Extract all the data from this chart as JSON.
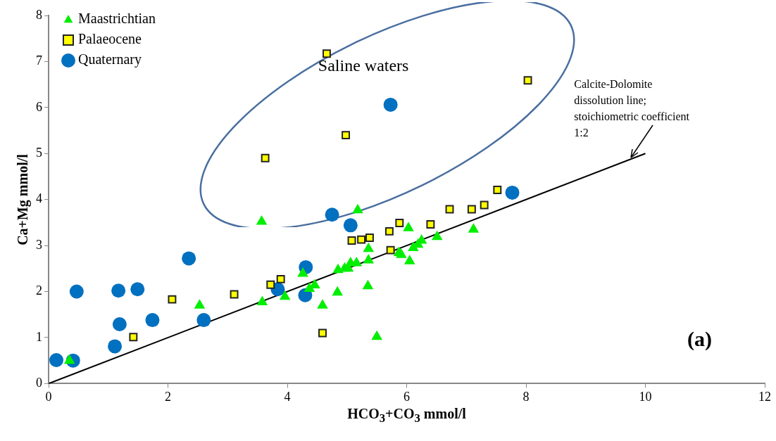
{
  "chart_data": {
    "type": "scatter",
    "xlabel": "HCO$_{3}$+CO$_{3}$ mmol/l",
    "ylabel": "Ca+Mg mmol/l",
    "xlim": [
      0,
      12
    ],
    "xticks": [
      0,
      2,
      4,
      6,
      8,
      10,
      12
    ],
    "ylim": [
      0,
      8
    ],
    "yticks": [
      0,
      1,
      2,
      3,
      4,
      5,
      6,
      7,
      8
    ],
    "grid": false,
    "legend": "top left",
    "series": [
      {
        "name": "Maastrichtian",
        "marker": "triangle",
        "color": "#00ee00",
        "x": [
          0.35,
          2.53,
          3.57,
          3.58,
          3.96,
          4.26,
          4.37,
          4.46,
          4.59,
          4.84,
          4.85,
          4.96,
          5.02,
          5.06,
          5.16,
          5.18,
          5.35,
          5.36,
          5.36,
          5.5,
          5.87,
          5.91,
          6.03,
          6.05,
          6.11,
          6.19,
          6.25,
          6.51,
          7.12
        ],
        "values": [
          0.5,
          1.7,
          3.52,
          1.77,
          1.89,
          2.39,
          2.06,
          2.14,
          1.7,
          1.98,
          2.47,
          2.5,
          2.5,
          2.62,
          2.62,
          3.77,
          2.12,
          2.93,
          2.68,
          1.02,
          2.84,
          2.8,
          3.38,
          2.66,
          2.95,
          3.02,
          3.11,
          3.19,
          3.35
        ]
      },
      {
        "name": "Palaeocene",
        "marker": "square",
        "color": "#ffff00",
        "x": [
          1.42,
          2.07,
          3.11,
          3.63,
          3.7,
          3.72,
          3.89,
          4.59,
          4.66,
          4.98,
          5.08,
          5.24,
          5.38,
          5.71,
          5.73,
          5.88,
          6.4,
          6.72,
          7.09,
          7.3,
          7.52,
          8.03
        ],
        "values": [
          1.01,
          1.83,
          1.94,
          4.9,
          null,
          2.15,
          2.27,
          1.1,
          7.17,
          5.4,
          3.11,
          3.13,
          3.17,
          3.31,
          2.9,
          3.49,
          3.46,
          3.79,
          3.79,
          3.88,
          4.21,
          6.59
        ]
      },
      {
        "name": "Quaternary",
        "marker": "circle",
        "color": "#0070c0",
        "x": [
          0.13,
          0.41,
          0.47,
          1.11,
          1.17,
          1.19,
          1.49,
          1.74,
          2.35,
          2.6,
          3.84,
          4.3,
          4.31,
          4.75,
          5.06,
          5.73,
          7.77
        ],
        "values": [
          0.51,
          0.5,
          2.0,
          0.81,
          2.02,
          1.29,
          2.05,
          1.38,
          2.72,
          1.38,
          2.05,
          1.92,
          2.53,
          3.67,
          3.44,
          6.06,
          4.15
        ]
      },
      {
        "type": "line",
        "marker": "none",
        "color": "#000000",
        "x": [
          0,
          10
        ],
        "values": [
          0,
          5
        ]
      }
    ],
    "annotations": [
      "Saline waters",
      {
        "text": "Calcite-Dolomite dissolution line; stoichiometric coefficient 1:2",
        "x": 9.75,
        "y": 4.88
      },
      "(a)"
    ]
  }
}
